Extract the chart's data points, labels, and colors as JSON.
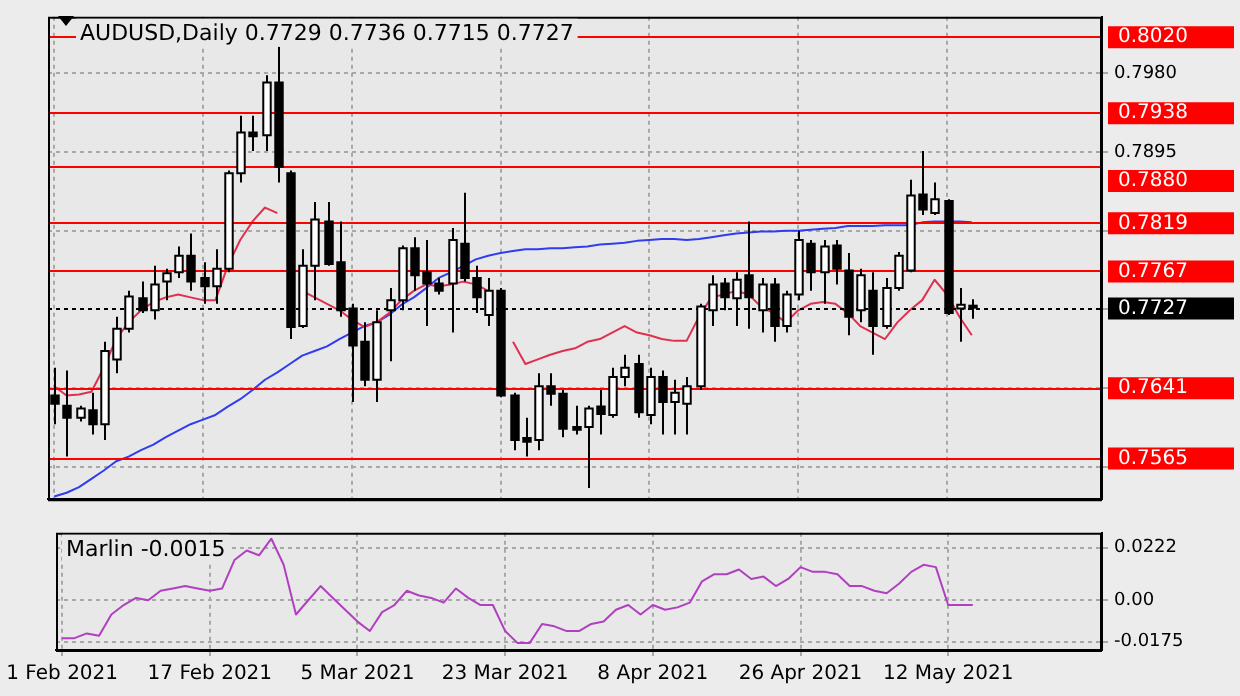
{
  "chart_data": [
    {
      "type": "candlestick",
      "title": "AUDUSD,Daily 0.7729 0.7736 0.7715 0.7727",
      "categories": [
        null,
        null,
        null,
        null,
        null,
        null,
        null,
        null,
        null,
        null,
        null,
        null,
        null,
        null,
        null,
        null,
        null,
        null,
        null,
        null,
        null,
        null,
        null,
        null,
        null,
        null,
        null,
        null,
        null,
        null,
        null,
        null,
        null,
        null,
        null,
        null,
        null,
        null,
        null,
        null,
        null,
        null,
        null,
        null,
        null,
        null,
        null,
        null,
        null,
        null,
        null,
        null,
        null,
        null,
        null,
        null,
        null,
        null,
        null,
        null,
        null,
        null,
        null,
        null,
        null,
        null,
        null,
        null,
        null,
        null,
        null,
        null,
        null,
        null,
        null,
        null,
        null,
        null,
        null,
        null,
        null,
        null,
        null,
        null,
        null
      ],
      "ohlc": [
        [
          0.7632,
          0.7662,
          0.7601,
          0.7623
        ],
        [
          0.7621,
          0.7659,
          0.7566,
          0.7608
        ],
        [
          0.7608,
          0.7621,
          0.7604,
          0.7618
        ],
        [
          0.7616,
          0.7635,
          0.759,
          0.7601
        ],
        [
          0.7601,
          0.769,
          0.7584,
          0.768
        ],
        [
          0.7671,
          0.7717,
          0.7656,
          0.7704
        ],
        [
          0.7704,
          0.7745,
          0.77,
          0.7739
        ],
        [
          0.7737,
          0.7755,
          0.7721,
          0.7724
        ],
        [
          0.7724,
          0.7772,
          0.7714,
          0.7752
        ],
        [
          0.7755,
          0.7769,
          0.7735,
          0.7764
        ],
        [
          0.7765,
          0.7793,
          0.7759,
          0.7783
        ],
        [
          0.7783,
          0.7807,
          0.7745,
          0.7755
        ],
        [
          0.7759,
          0.7776,
          0.7731,
          0.775
        ],
        [
          0.775,
          0.779,
          0.7731,
          0.7769
        ],
        [
          0.7769,
          0.7875,
          0.7765,
          0.7872
        ],
        [
          0.7872,
          0.7934,
          0.7862,
          0.7916
        ],
        [
          0.7916,
          0.7934,
          0.7896,
          0.7912
        ],
        [
          0.7913,
          0.7978,
          0.7896,
          0.797
        ],
        [
          0.797,
          0.8009,
          0.7862,
          0.7879
        ],
        [
          0.7872,
          0.7875,
          0.7693,
          0.7706
        ],
        [
          0.7707,
          0.779,
          0.7705,
          0.7772
        ],
        [
          0.7772,
          0.7841,
          0.7735,
          0.7822
        ],
        [
          0.782,
          0.7841,
          0.7772,
          0.7774
        ],
        [
          0.7776,
          0.782,
          0.7717,
          0.7724
        ],
        [
          0.7726,
          0.7731,
          0.7625,
          0.7686
        ],
        [
          0.769,
          0.7711,
          0.7642,
          0.7649
        ],
        [
          0.7649,
          0.7724,
          0.7625,
          0.7711
        ],
        [
          0.7724,
          0.7748,
          0.7669,
          0.7735
        ],
        [
          0.7735,
          0.7794,
          0.7724,
          0.7791
        ],
        [
          0.7791,
          0.7803,
          0.7745,
          0.7762
        ],
        [
          0.7765,
          0.78,
          0.7707,
          0.7753
        ],
        [
          0.7753,
          0.7759,
          0.7741,
          0.7745
        ],
        [
          0.7753,
          0.7813,
          0.77,
          0.78
        ],
        [
          0.7796,
          0.7851,
          0.7755,
          0.7759
        ],
        [
          0.7759,
          0.7772,
          0.7721,
          0.7738
        ],
        [
          0.7719,
          0.7759,
          0.7707,
          0.7745
        ],
        [
          0.7745,
          0.7748,
          0.763,
          0.7632
        ],
        [
          0.7632,
          0.7635,
          0.7573,
          0.7584
        ],
        [
          0.7586,
          0.7608,
          0.7566,
          0.7582
        ],
        [
          0.7584,
          0.7656,
          0.7573,
          0.7642
        ],
        [
          0.7642,
          0.7656,
          0.7621,
          0.7634
        ],
        [
          0.7634,
          0.7638,
          0.7587,
          0.7596
        ],
        [
          0.7598,
          0.7621,
          0.759,
          0.7595
        ],
        [
          0.7598,
          0.7621,
          0.7532,
          0.7618
        ],
        [
          0.762,
          0.7638,
          0.759,
          0.7612
        ],
        [
          0.7611,
          0.7662,
          0.7608,
          0.7652
        ],
        [
          0.7652,
          0.7676,
          0.7642,
          0.7662
        ],
        [
          0.7666,
          0.7676,
          0.7608,
          0.7614
        ],
        [
          0.7611,
          0.7662,
          0.7601,
          0.7652
        ],
        [
          0.7652,
          0.7659,
          0.759,
          0.7625
        ],
        [
          0.7625,
          0.7649,
          0.759,
          0.7635
        ],
        [
          0.7623,
          0.7652,
          0.759,
          0.7642
        ],
        [
          0.7642,
          0.7731,
          0.7638,
          0.7728
        ],
        [
          0.7724,
          0.7762,
          0.7707,
          0.7752
        ],
        [
          0.7753,
          0.7759,
          0.7724,
          0.7738
        ],
        [
          0.7737,
          0.7765,
          0.7707,
          0.7757
        ],
        [
          0.7762,
          0.782,
          0.7704,
          0.7738
        ],
        [
          0.7724,
          0.7759,
          0.77,
          0.7752
        ],
        [
          0.7752,
          0.7759,
          0.769,
          0.7707
        ],
        [
          0.7707,
          0.7745,
          0.77,
          0.7741
        ],
        [
          0.7741,
          0.781,
          0.7735,
          0.78
        ],
        [
          0.7796,
          0.78,
          0.7745,
          0.7765
        ],
        [
          0.7765,
          0.78,
          0.7731,
          0.7793
        ],
        [
          0.7794,
          0.78,
          0.7752,
          0.7769
        ],
        [
          0.7767,
          0.7786,
          0.7697,
          0.7717
        ],
        [
          0.7724,
          0.7769,
          0.7711,
          0.7762
        ],
        [
          0.7745,
          0.7765,
          0.7676,
          0.7707
        ],
        [
          0.7707,
          0.7759,
          0.7704,
          0.7748
        ],
        [
          0.7748,
          0.7787,
          0.7745,
          0.7783
        ],
        [
          0.7767,
          0.7865,
          0.7765,
          0.7848
        ],
        [
          0.7849,
          0.7896,
          0.7827,
          0.7833
        ],
        [
          0.7829,
          0.7862,
          0.7827,
          0.7844
        ],
        [
          0.7842,
          0.7844,
          0.7719,
          0.7721
        ],
        [
          0.7726,
          0.7748,
          0.769,
          0.773
        ],
        [
          0.7729,
          0.7736,
          0.7715,
          0.7727
        ],
        null,
        null,
        null,
        null,
        null,
        null,
        null,
        null,
        null,
        null
      ],
      "series": [
        {
          "type": "line",
          "color": "#e0304f",
          "values": [
            0.7642,
            0.7632,
            0.7633,
            0.7636,
            0.7662,
            0.7693,
            0.7711,
            0.7724,
            0.7733,
            0.7738,
            0.7741,
            0.7738,
            0.7735,
            0.7735,
            0.7772,
            0.78,
            0.782,
            0.7835,
            0.7829,
            null,
            0.7745,
            0.7738,
            0.7731,
            0.7724,
            0.7714,
            0.7706,
            0.7711,
            0.7721,
            0.7735,
            0.7745,
            0.7752,
            0.775,
            0.7752,
            0.7755,
            0.7752,
            0.7745,
            null,
            0.769,
            0.7666,
            0.7671,
            0.7676,
            0.768,
            0.7683,
            0.769,
            0.7693,
            0.77,
            0.7707,
            0.77,
            0.7697,
            0.7693,
            0.7691,
            0.7691,
            0.7717,
            0.7738,
            0.7741,
            0.7745,
            0.7741,
            0.7728,
            0.7721,
            0.7711,
            0.7724,
            0.7731,
            0.7733,
            0.7731,
            0.7721,
            0.7707,
            0.77,
            0.7693,
            0.7711,
            0.7724,
            0.7735,
            0.7757,
            0.7741,
            0.7717,
            0.7697,
            null,
            null,
            null,
            null,
            null,
            null,
            null,
            null,
            null,
            null
          ]
        },
        {
          "type": "line",
          "color": "#2f3cf0",
          "values": [
            0.7523,
            0.7527,
            0.7533,
            0.7542,
            0.7551,
            0.7561,
            0.7566,
            0.7573,
            0.7579,
            0.7587,
            0.7594,
            0.7601,
            0.7606,
            0.7611,
            0.762,
            0.7628,
            0.7638,
            0.7649,
            0.7657,
            0.7666,
            0.7675,
            0.768,
            0.7685,
            0.7693,
            0.77,
            0.7707,
            0.7711,
            0.7719,
            0.773,
            0.7738,
            0.7748,
            0.7759,
            0.7765,
            0.7772,
            0.7779,
            0.7783,
            0.7786,
            0.7788,
            0.779,
            0.779,
            0.7791,
            0.7791,
            0.7792,
            0.7793,
            0.7795,
            0.7796,
            0.7797,
            0.7799,
            0.78,
            0.7801,
            0.7801,
            0.78,
            0.7801,
            0.7803,
            0.7805,
            0.7807,
            0.7808,
            0.7809,
            0.7809,
            0.781,
            0.781,
            0.7811,
            0.7812,
            0.7813,
            0.7815,
            0.7815,
            0.7815,
            0.7816,
            0.7816,
            0.7816,
            0.7819,
            0.782,
            0.782,
            0.782,
            0.7819,
            null,
            null,
            null,
            null,
            null,
            null,
            null,
            null,
            null,
            null
          ]
        }
      ],
      "ylim": [
        0.752,
        0.8041
      ],
      "yticks": [
        {
          "value": 0.798,
          "label": "0.7980"
        },
        0.7895,
        {
          "value": 0.781,
          "label": null
        },
        {
          "value": 0.7725,
          "label": null
        },
        {
          "value": 0.764,
          "label": null
        },
        {
          "value": 0.7555,
          "label": null
        }
      ],
      "ref_lines": [
        {
          "axis": "y",
          "value": 0.802,
          "label": "0.8020",
          "color": "#ff0000"
        },
        {
          "axis": "y",
          "value": 0.7938,
          "label": "0.7938",
          "color": "#ff0000"
        },
        {
          "axis": "y",
          "value": 0.788,
          "label": "0.7880",
          "color": "#ff0000"
        },
        {
          "axis": "y",
          "value": 0.7819,
          "label": "0.7819",
          "color": "#ff0000"
        },
        {
          "axis": "y",
          "value": 0.7767,
          "label": "0.7767",
          "color": "#ff0000"
        },
        {
          "axis": "y",
          "value": 0.7727,
          "label": "0.7727",
          "color": "#000000",
          "line_style": "dotted"
        },
        {
          "axis": "y",
          "value": 0.7641,
          "label": "0.7641",
          "color": "#ff0000"
        },
        {
          "axis": "y",
          "value": 0.7565,
          "label": "0.7565",
          "color": "#ff0000"
        }
      ],
      "grid": true,
      "tick_labels": "y"
    },
    {
      "type": "line",
      "title": "Marlin -0.0015",
      "categories": [
        "1 Feb 2021",
        null,
        null,
        null,
        null,
        null,
        null,
        null,
        null,
        null,
        null,
        null,
        "17 Feb 2021",
        null,
        null,
        null,
        null,
        null,
        null,
        null,
        null,
        null,
        null,
        null,
        "5 Mar 2021",
        null,
        null,
        null,
        null,
        null,
        null,
        null,
        null,
        null,
        null,
        null,
        "23 Mar 2021",
        null,
        null,
        null,
        null,
        null,
        null,
        null,
        null,
        null,
        null,
        null,
        "8 Apr 2021",
        null,
        null,
        null,
        null,
        null,
        null,
        null,
        null,
        null,
        null,
        null,
        "26 Apr 2021",
        null,
        null,
        null,
        null,
        null,
        null,
        null,
        null,
        null,
        null,
        null,
        "12 May 2021",
        null,
        null,
        null,
        null,
        null,
        null,
        null,
        null,
        null,
        null,
        null,
        null
      ],
      "color": "#b040c0",
      "values": [
        -0.016,
        -0.016,
        -0.014,
        -0.015,
        -0.006,
        -0.002,
        0.001,
        0,
        0.004,
        0.005,
        0.006,
        0.005,
        0.004,
        0.005,
        0.017,
        0.021,
        0.019,
        0.026,
        0.015,
        -0.006,
        0,
        0.006,
        0.001,
        -0.004,
        -0.009,
        -0.013,
        -0.005,
        -0.002,
        0.004,
        0.002,
        0.001,
        -0.001,
        0.005,
        0.001,
        -0.002,
        -0.002,
        -0.013,
        -0.018,
        -0.018,
        -0.01,
        -0.011,
        -0.013,
        -0.013,
        -0.01,
        -0.009,
        -0.004,
        -0.002,
        -0.006,
        -0.002,
        -0.004,
        -0.003,
        -0.001,
        0.008,
        0.011,
        0.011,
        0.013,
        0.009,
        0.01,
        0.006,
        0.009,
        0.014,
        0.012,
        0.012,
        0.011,
        0.006,
        0.006,
        0.004,
        0.003,
        0.007,
        0.012,
        0.015,
        0.014,
        -0.002,
        -0.002,
        -0.002,
        null,
        null,
        null,
        null,
        null,
        null,
        null,
        null,
        null,
        null
      ],
      "ylim": [
        -0.021,
        0.0285
      ],
      "yticks": [
        0.0222,
        {
          "value": 0,
          "label": "0.00"
        },
        -0.0175
      ],
      "grid": true
    }
  ]
}
